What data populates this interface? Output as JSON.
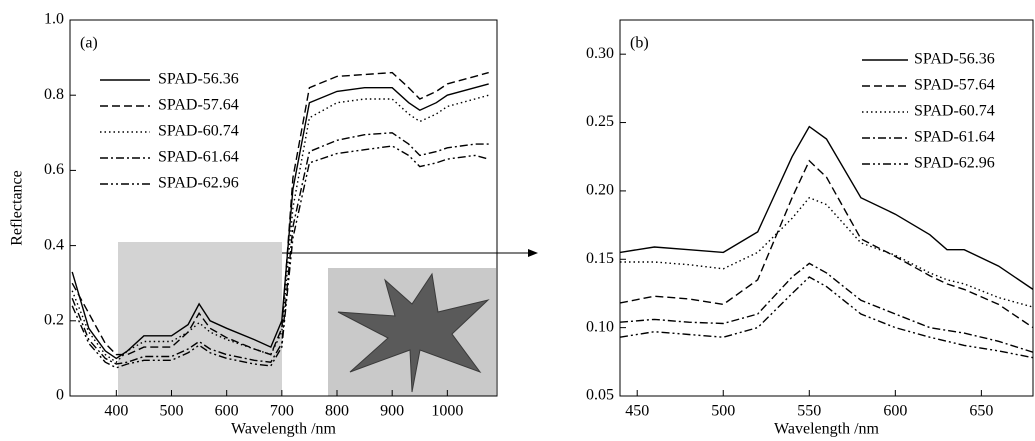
{
  "chart_data": [
    {
      "type": "line",
      "panel_label": "(a)",
      "xlabel": "Wavelength /nm",
      "ylabel": "Reflectance",
      "x": [
        320,
        350,
        380,
        400,
        420,
        450,
        500,
        530,
        550,
        570,
        600,
        650,
        680,
        700,
        720,
        750,
        800,
        850,
        900,
        930,
        950,
        980,
        1000,
        1050,
        1075
      ],
      "xlim": [
        316,
        1090
      ],
      "xticks": [
        400,
        500,
        600,
        700,
        800,
        900,
        1000
      ],
      "ylim": [
        0,
        1
      ],
      "yticks": [
        0,
        0.2,
        0.4,
        0.6,
        0.8,
        {
          "value": 1,
          "label": "1.0"
        }
      ],
      "series": [
        {
          "name": "SPAD-56.36",
          "color": "#000000",
          "dash": "solid",
          "values": [
            0.33,
            0.18,
            0.12,
            0.1,
            0.12,
            0.16,
            0.16,
            0.19,
            0.245,
            0.2,
            0.18,
            0.15,
            0.13,
            0.2,
            0.55,
            0.78,
            0.81,
            0.82,
            0.82,
            0.78,
            0.76,
            0.78,
            0.8,
            0.82,
            0.83
          ]
        },
        {
          "name": "SPAD-57.64",
          "color": "#000000",
          "dash": "dashed",
          "values": [
            0.3,
            0.22,
            0.14,
            0.11,
            0.11,
            0.13,
            0.13,
            0.17,
            0.22,
            0.18,
            0.155,
            0.125,
            0.11,
            0.18,
            0.58,
            0.82,
            0.85,
            0.855,
            0.86,
            0.82,
            0.79,
            0.81,
            0.83,
            0.85,
            0.86
          ]
        },
        {
          "name": "SPAD-60.74",
          "color": "#000000",
          "dash": "dotted",
          "values": [
            0.28,
            0.17,
            0.11,
            0.09,
            0.12,
            0.145,
            0.145,
            0.17,
            0.195,
            0.17,
            0.15,
            0.125,
            0.11,
            0.17,
            0.5,
            0.74,
            0.78,
            0.79,
            0.79,
            0.75,
            0.73,
            0.75,
            0.77,
            0.79,
            0.8
          ]
        },
        {
          "name": "SPAD-61.64",
          "color": "#000000",
          "dash": "dashdot",
          "values": [
            0.26,
            0.15,
            0.1,
            0.085,
            0.09,
            0.105,
            0.105,
            0.125,
            0.145,
            0.125,
            0.11,
            0.095,
            0.09,
            0.14,
            0.45,
            0.65,
            0.68,
            0.695,
            0.7,
            0.67,
            0.64,
            0.65,
            0.66,
            0.67,
            0.67
          ]
        },
        {
          "name": "SPAD-62.96",
          "color": "#000000",
          "dash": "dashdotdot",
          "values": [
            0.24,
            0.14,
            0.09,
            0.075,
            0.085,
            0.095,
            0.095,
            0.115,
            0.135,
            0.115,
            0.1,
            0.085,
            0.08,
            0.13,
            0.42,
            0.62,
            0.645,
            0.655,
            0.665,
            0.64,
            0.61,
            0.62,
            0.63,
            0.64,
            0.63
          ]
        }
      ]
    },
    {
      "type": "line",
      "panel_label": "(b)",
      "xlabel": "Wavelength /nm",
      "x": [
        440,
        460,
        480,
        500,
        520,
        540,
        550,
        560,
        580,
        600,
        620,
        630,
        640,
        660,
        680
      ],
      "xlim": [
        440,
        680
      ],
      "xticks": [
        450,
        500,
        550,
        600,
        650
      ],
      "ylim": [
        0.05,
        0.325
      ],
      "yticks": [
        0.05,
        {
          "value": 0.1,
          "label": "0.10"
        },
        0.15,
        {
          "value": 0.2,
          "label": "0.20"
        },
        0.25,
        {
          "value": 0.3,
          "label": "0.30"
        }
      ],
      "series": [
        {
          "name": "SPAD-56.36",
          "color": "#000000",
          "dash": "solid",
          "values": [
            0.155,
            0.159,
            0.157,
            0.155,
            0.17,
            0.225,
            0.247,
            0.238,
            0.195,
            0.183,
            0.168,
            0.157,
            0.157,
            0.145,
            0.128
          ]
        },
        {
          "name": "SPAD-57.64",
          "color": "#000000",
          "dash": "dashed",
          "values": [
            0.118,
            0.123,
            0.121,
            0.117,
            0.135,
            0.195,
            0.222,
            0.21,
            0.165,
            0.152,
            0.138,
            0.132,
            0.128,
            0.117,
            0.1
          ]
        },
        {
          "name": "SPAD-60.74",
          "color": "#000000",
          "dash": "dotted",
          "values": [
            0.148,
            0.148,
            0.146,
            0.143,
            0.155,
            0.18,
            0.195,
            0.19,
            0.162,
            0.153,
            0.14,
            0.135,
            0.132,
            0.122,
            0.115
          ]
        },
        {
          "name": "SPAD-61.64",
          "color": "#000000",
          "dash": "dashdot",
          "values": [
            0.104,
            0.106,
            0.104,
            0.103,
            0.11,
            0.137,
            0.147,
            0.14,
            0.12,
            0.11,
            0.1,
            0.098,
            0.096,
            0.09,
            0.082
          ]
        },
        {
          "name": "SPAD-62.96",
          "color": "#000000",
          "dash": "dashdotdot",
          "values": [
            0.093,
            0.097,
            0.095,
            0.093,
            0.1,
            0.125,
            0.137,
            0.13,
            0.11,
            0.1,
            0.093,
            0.09,
            0.087,
            0.083,
            0.078
          ]
        }
      ]
    }
  ]
}
